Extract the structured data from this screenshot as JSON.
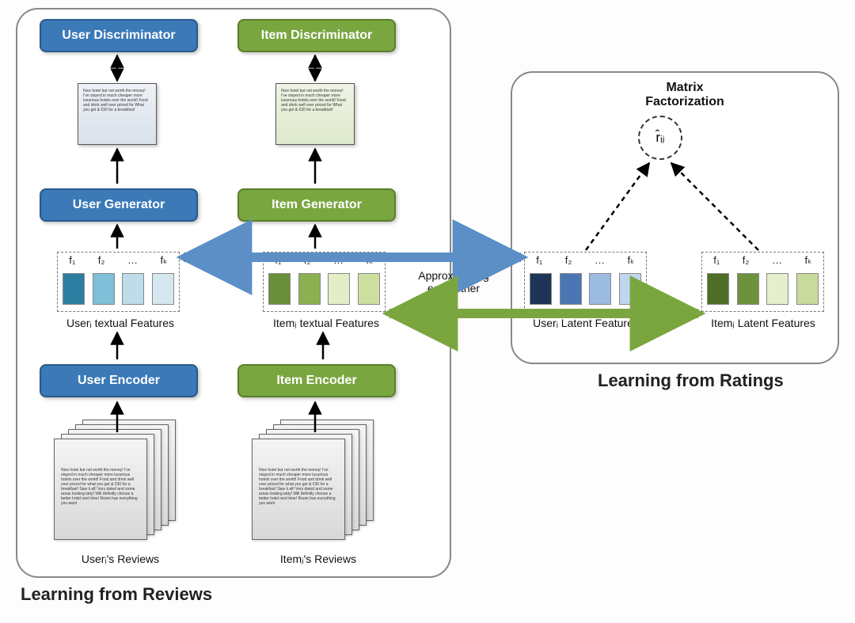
{
  "type": "flowchart",
  "background_color": "#fdfdfd",
  "panels": {
    "left": {
      "title": "Learning from Reviews",
      "border_color": "#888888"
    },
    "right": {
      "title": "Learning from Ratings",
      "border_color": "#888888",
      "heading": "Matrix Factorization"
    }
  },
  "colors": {
    "blue_block": "#3b79b7",
    "blue_block_border": "#2a5a8c",
    "green_block": "#7aa640",
    "green_block_border": "#5b7e2e",
    "blue_arrow": "#5b8fc5",
    "green_arrow": "#7aa640",
    "user_cells": [
      "#2b7ea0",
      "#7fbfd8",
      "#bcdde9",
      "#d6e8ef"
    ],
    "item_cells": [
      "#6a8f3a",
      "#8bb050",
      "#e3eec7",
      "#cddf9f"
    ],
    "user_latent_cells": [
      "#1d3557",
      "#4a77b4",
      "#9bbbe0",
      "#c2d5ee"
    ],
    "item_latent_cells": [
      "#4f6f28",
      "#6e923c",
      "#e6efcd",
      "#c9db9c"
    ]
  },
  "blocks": {
    "user_discriminator": "User Discriminator",
    "item_discriminator": "Item Discriminator",
    "user_generator": "User Generator",
    "item_generator": "Item Generator",
    "user_encoder": "User Encoder",
    "item_encoder": "Item Encoder"
  },
  "feature_labels": [
    "f₁",
    "f₂",
    "…",
    "fₖ"
  ],
  "captions": {
    "user_textual": "Userᵢ textual Features",
    "item_textual": "Itemⱼ textual Features",
    "user_latent": "Userᵢ Latent Features",
    "item_latent": "Itemⱼ Latent Features",
    "user_reviews": "Userᵢ's Reviews",
    "item_reviews": "Itemⱼ's Reviews"
  },
  "approx_label": "Approximating\neach other",
  "rij_label": "r̂ᵢⱼ",
  "review_snippet": "Nice hotel but not worth the money! I've stayed in much cheaper more luxurious hotels over the world! Food and drink well over priced for what you get & €30 for a breakfast! Saw it all! Very dated and some areas looking tatty! Will definitly choose a better hotel next time! Room has everything you want",
  "short_snippet": "Nice hotel but not worth the money! I've stayed in much cheaper more luxurious hotels over the world! Food and drink well over priced for What you get & €30 for a breakfast!",
  "fonts": {
    "block_label_pt": 16,
    "title_pt": 22,
    "caption_pt": 14
  }
}
